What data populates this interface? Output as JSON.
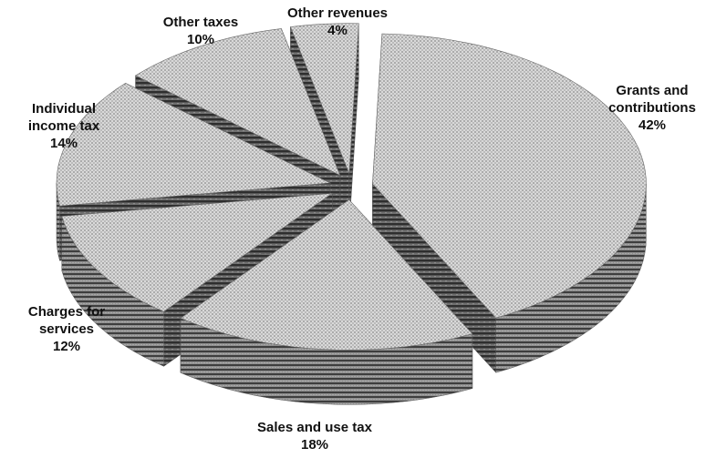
{
  "chart_data": {
    "type": "pie",
    "style": "3d-exploded",
    "slices": [
      {
        "label_lines": [
          "Grants and",
          "contributions"
        ],
        "value_label": "42%",
        "value": 42
      },
      {
        "label_lines": [
          "Sales and use tax"
        ],
        "value_label": "18%",
        "value": 18
      },
      {
        "label_lines": [
          "Charges for",
          "services"
        ],
        "value_label": "12%",
        "value": 12
      },
      {
        "label_lines": [
          "Individual",
          "income tax"
        ],
        "value_label": "14%",
        "value": 14
      },
      {
        "label_lines": [
          "Other taxes"
        ],
        "value_label": "10%",
        "value": 10
      },
      {
        "label_lines": [
          "Other revenues"
        ],
        "value_label": "4%",
        "value": 4
      }
    ],
    "legend": "none",
    "colors": {
      "top": "#cfcfcf",
      "side_light": "#9a9a9a",
      "side_dark": "#444444"
    }
  }
}
